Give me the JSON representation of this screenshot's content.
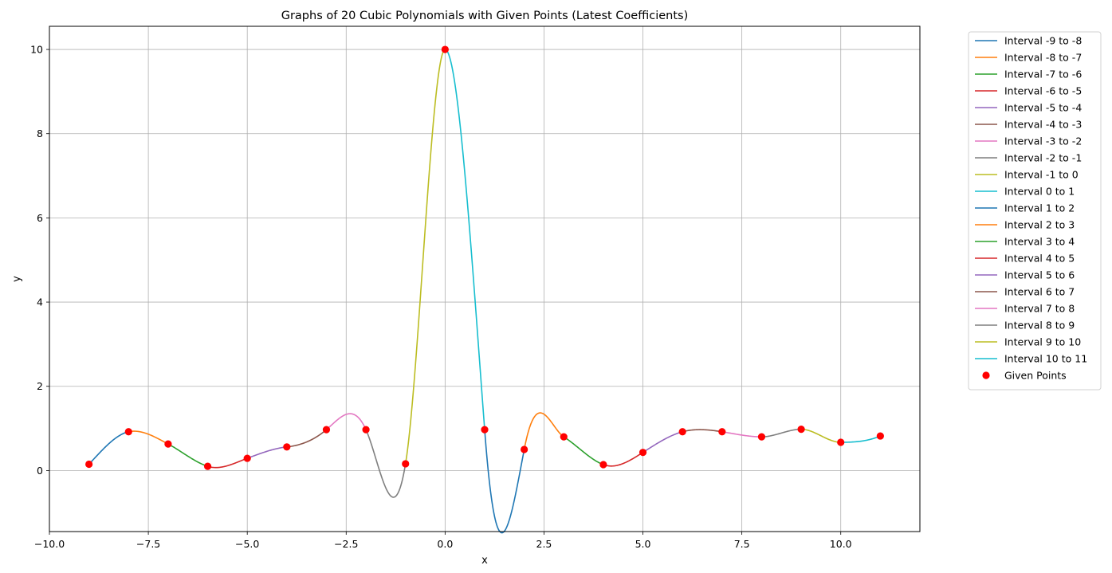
{
  "chart_data": {
    "type": "line",
    "title": "Graphs of 20 Cubic Polynomials with Given Points (Latest Coefficients)",
    "xlabel": "x",
    "ylabel": "y",
    "xlim": [
      -10.0,
      12.0
    ],
    "ylim": [
      -1.45,
      10.55
    ],
    "xticks": [
      -10.0,
      -7.5,
      -5.0,
      -2.5,
      0.0,
      2.5,
      5.0,
      7.5,
      10.0
    ],
    "xtick_labels": [
      "−10.0",
      "−7.5",
      "−5.0",
      "−2.5",
      "0.0",
      "2.5",
      "5.0",
      "7.5",
      "10.0"
    ],
    "yticks": [
      0,
      2,
      4,
      6,
      8,
      10
    ],
    "ytick_labels": [
      "0",
      "2",
      "4",
      "6",
      "8",
      "10"
    ],
    "grid": true,
    "legend_position": "outside-right",
    "given_points": {
      "name": "Given Points",
      "color": "#ff0000",
      "x": [
        -9,
        -8,
        -7,
        -6,
        -5,
        -4,
        -3,
        -2,
        -1,
        0,
        1,
        2,
        3,
        4,
        5,
        6,
        7,
        8,
        9,
        10,
        11
      ],
      "y": [
        0.15,
        0.92,
        0.63,
        0.1,
        0.29,
        0.56,
        0.97,
        0.97,
        0.16,
        10.0,
        0.97,
        0.5,
        0.8,
        0.14,
        0.43,
        0.92,
        0.92,
        0.8,
        0.98,
        0.67,
        0.82
      ]
    },
    "series": [
      {
        "name": "Interval -9 to -8",
        "color": "#1f77b4",
        "x0": -9,
        "x1": -8,
        "d0": 1.0,
        "d1": 0.2
      },
      {
        "name": "Interval -8 to -7",
        "color": "#ff7f0e",
        "x0": -8,
        "x1": -7,
        "d0": 0.2,
        "d1": -0.5
      },
      {
        "name": "Interval -7 to -6",
        "color": "#2ca02c",
        "x0": -7,
        "x1": -6,
        "d0": -0.5,
        "d1": -0.3
      },
      {
        "name": "Interval -6 to -5",
        "color": "#d62728",
        "x0": -6,
        "x1": -5,
        "d0": -0.3,
        "d1": 0.35
      },
      {
        "name": "Interval -5 to -4",
        "color": "#9467bd",
        "x0": -5,
        "x1": -4,
        "d0": 0.35,
        "d1": 0.1
      },
      {
        "name": "Interval -4 to -3",
        "color": "#8c564b",
        "x0": -4,
        "x1": -3,
        "d0": 0.1,
        "d1": 0.8
      },
      {
        "name": "Interval -3 to -2",
        "color": "#e377c2",
        "x0": -3,
        "x1": -2,
        "d0": 0.8,
        "d1": -2.1
      },
      {
        "name": "Interval -2 to -1",
        "color": "#7f7f7f",
        "x0": -2,
        "x1": -1,
        "d0": -2.1,
        "d1": 5.7
      },
      {
        "name": "Interval -1 to 0",
        "color": "#bcbd22",
        "x0": -1,
        "x1": 0,
        "d0": 5.7,
        "d1": 0.0
      },
      {
        "name": "Interval 0 to 1",
        "color": "#17becf",
        "x0": 0,
        "x1": 1,
        "d0": 0.0,
        "d1": -12.5
      },
      {
        "name": "Interval 1 to 2",
        "color": "#1f77b4",
        "x0": 1,
        "x1": 2,
        "d0": -12.5,
        "d1": 4.9
      },
      {
        "name": "Interval 2 to 3",
        "color": "#ff7f0e",
        "x0": 2,
        "x1": 3,
        "d0": 4.9,
        "d1": -0.6
      },
      {
        "name": "Interval 3 to 4",
        "color": "#2ca02c",
        "x0": 3,
        "x1": 4,
        "d0": -0.6,
        "d1": -0.35
      },
      {
        "name": "Interval 4 to 5",
        "color": "#d62728",
        "x0": 4,
        "x1": 5,
        "d0": -0.35,
        "d1": 0.6
      },
      {
        "name": "Interval 5 to 6",
        "color": "#9467bd",
        "x0": 5,
        "x1": 6,
        "d0": 0.6,
        "d1": 0.25
      },
      {
        "name": "Interval 6 to 7",
        "color": "#8c564b",
        "x0": 6,
        "x1": 7,
        "d0": 0.25,
        "d1": -0.15
      },
      {
        "name": "Interval 7 to 8",
        "color": "#e377c2",
        "x0": 7,
        "x1": 8,
        "d0": -0.15,
        "d1": 0.0
      },
      {
        "name": "Interval 8 to 9",
        "color": "#7f7f7f",
        "x0": 8,
        "x1": 9,
        "d0": 0.0,
        "d1": 0.0
      },
      {
        "name": "Interval 9 to 10",
        "color": "#bcbd22",
        "x0": 9,
        "x1": 10,
        "d0": 0.0,
        "d1": 0.0
      },
      {
        "name": "Interval 10 to 11",
        "color": "#17becf",
        "x0": 10,
        "x1": 11,
        "d0": 0.0,
        "d1": 0.4
      }
    ]
  }
}
